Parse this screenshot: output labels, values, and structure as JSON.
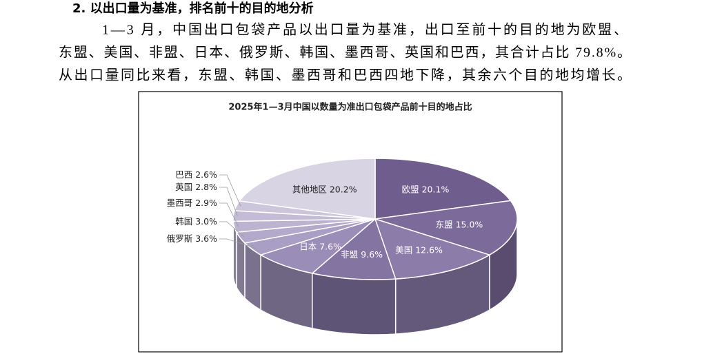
{
  "header": {
    "title": "2. 以出口量为基准，排名前十的目的地分析"
  },
  "paragraph": [
    "1—3 月，中国出口包袋产品以出口量为基准，出口至前十的目的地为欧盟、",
    "东盟、美国、非盟、日本、俄罗斯、韩国、墨西哥、英国和巴西，其合计占比 79.8%。",
    "从出口量同比来看，东盟、韩国、墨西哥和巴西四地下降，其余六个目的地均增长。"
  ],
  "chart_data": {
    "type": "pie",
    "title": "2025年1—3月中国以数量为准出口包袋产品前十目的地占比",
    "categories": [
      "欧盟",
      "东盟",
      "美国",
      "非盟",
      "日本",
      "俄罗斯",
      "韩国",
      "墨西哥",
      "英国",
      "巴西",
      "其他地区"
    ],
    "values": [
      20.1,
      15.0,
      12.6,
      9.6,
      7.6,
      3.6,
      3.0,
      2.9,
      2.8,
      2.6,
      20.2
    ],
    "value_labels": [
      "20.1%",
      "15.0%",
      "12.6%",
      "9.6%",
      "7.6%",
      "3.6%",
      "3.0%",
      "2.9%",
      "2.8%",
      "2.6%",
      "20.2%"
    ],
    "colors": [
      "#6f5d8d",
      "#7b6a9a",
      "#8b7caa",
      "#8374a2",
      "#9a8db7",
      "#a99ec3",
      "#b3a9ca",
      "#bcb3d1",
      "#c4bcd7",
      "#ccc5dc",
      "#d9d4e3"
    ]
  }
}
